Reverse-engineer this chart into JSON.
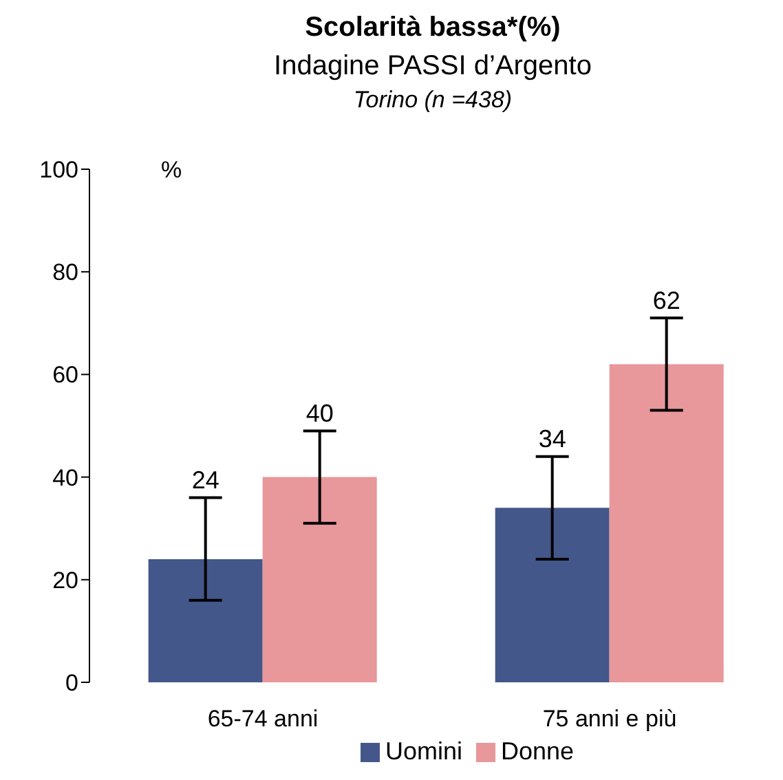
{
  "chart_data": {
    "type": "bar",
    "title": "Scolarità bassa*(%)",
    "subtitle": "Indagine PASSI d’Argento",
    "annotations": [
      "Torino (n =438)"
    ],
    "ylabel": "%",
    "categories": [
      "65-74 anni",
      "75 anni e più"
    ],
    "series": [
      {
        "name": "Uomini",
        "color": "#44578a",
        "values": [
          24,
          34
        ],
        "errors": [
          [
            16,
            36
          ],
          [
            24,
            44
          ]
        ]
      },
      {
        "name": "Donne",
        "color": "#e8979a",
        "values": [
          40,
          62
        ],
        "errors": [
          [
            31,
            49
          ],
          [
            53,
            71
          ]
        ]
      }
    ],
    "ylim": [
      0,
      100
    ],
    "yticks": [
      0,
      20,
      40,
      60,
      80,
      100
    ],
    "data_labels": true,
    "legend": "bottom",
    "grid": false
  }
}
